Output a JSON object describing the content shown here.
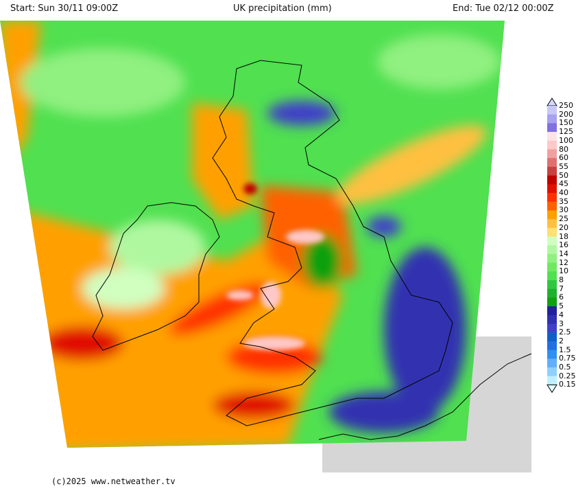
{
  "header": {
    "start": "Start: Sun 30/11 09:00Z",
    "title": "UK precipitation (mm)",
    "end": "End: Tue 02/12 00:00Z"
  },
  "footer": {
    "copyright": "(c)2025 www.netweather.tv"
  },
  "legend": {
    "labels": [
      "250",
      "200",
      "150",
      "125",
      "100",
      "80",
      "60",
      "55",
      "50",
      "45",
      "40",
      "35",
      "30",
      "25",
      "20",
      "18",
      "16",
      "14",
      "12",
      "10",
      "8",
      "7",
      "6",
      "5",
      "4",
      "3",
      "2.5",
      "2",
      "1.5",
      "0.75",
      "0.5",
      "0.25",
      "0.15"
    ],
    "colors": [
      "#c8c8f8",
      "#a8a0f0",
      "#8070e0",
      "#ffe4e4",
      "#ffc8c8",
      "#f0a0a0",
      "#e07070",
      "#c84040",
      "#c00000",
      "#e01000",
      "#ff3000",
      "#ff6000",
      "#ffa000",
      "#ffc040",
      "#ffe070",
      "#d0ffc0",
      "#b0f8a0",
      "#90f080",
      "#70e860",
      "#50e050",
      "#30c840",
      "#20b030",
      "#10a010",
      "#2020a0",
      "#3030b0",
      "#4040c8",
      "#1060c8",
      "#2070e0",
      "#3090f0",
      "#60b0f8",
      "#90d0ff",
      "#c0f0ff"
    ]
  }
}
